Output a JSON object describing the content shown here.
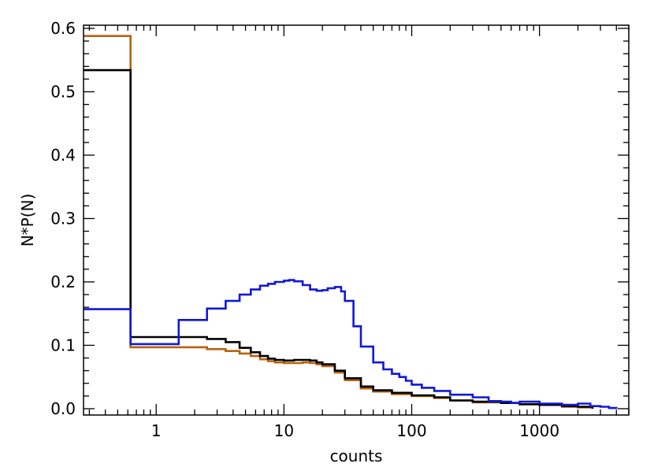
{
  "chart_data": {
    "type": "line",
    "title": "",
    "xlabel": "counts",
    "ylabel": "N*P(N)",
    "xscale": "log",
    "xlim": [
      0.27,
      5000
    ],
    "ylim": [
      -0.01,
      0.605
    ],
    "x_ticks": [
      {
        "value": 1,
        "label": "1"
      },
      {
        "value": 10,
        "label": "10"
      },
      {
        "value": 100,
        "label": "100"
      },
      {
        "value": 1000,
        "label": "1000"
      }
    ],
    "y_ticks": [
      {
        "value": 0.0,
        "label": "0.0"
      },
      {
        "value": 0.1,
        "label": "0.1"
      },
      {
        "value": 0.2,
        "label": "0.2"
      },
      {
        "value": 0.3,
        "label": "0.3"
      },
      {
        "value": 0.4,
        "label": "0.4"
      },
      {
        "value": 0.5,
        "label": "0.5"
      },
      {
        "value": 0.6,
        "label": "0.6"
      }
    ],
    "grid": false,
    "legend": "none",
    "series": [
      {
        "color": "#b8620e",
        "step": true,
        "x": [
          0.27,
          0.63,
          0.63,
          1.5,
          2.5,
          3.5,
          4.5,
          5.5,
          6.5,
          7.5,
          8.5,
          10,
          12,
          14,
          16,
          18,
          20,
          25,
          30,
          40,
          50,
          70,
          100,
          150,
          200,
          300,
          500,
          700,
          1000,
          1500,
          2000,
          2600
        ],
        "y": [
          0.588,
          0.588,
          0.097,
          0.097,
          0.094,
          0.091,
          0.087,
          0.083,
          0.078,
          0.075,
          0.073,
          0.072,
          0.072,
          0.073,
          0.072,
          0.07,
          0.067,
          0.057,
          0.045,
          0.032,
          0.027,
          0.023,
          0.02,
          0.017,
          0.013,
          0.01,
          0.009,
          0.007,
          0.006,
          0.003,
          0.002,
          0.0
        ]
      },
      {
        "color": "#000000",
        "step": true,
        "x": [
          0.27,
          0.63,
          0.63,
          1.5,
          2.5,
          3.5,
          4.5,
          5.5,
          6.5,
          7.5,
          8.5,
          10,
          12,
          14,
          16,
          18,
          20,
          25,
          30,
          40,
          50,
          70,
          100,
          150,
          200,
          300,
          500,
          700,
          1000,
          1500,
          2000,
          2600
        ],
        "y": [
          0.534,
          0.534,
          0.113,
          0.113,
          0.11,
          0.105,
          0.096,
          0.089,
          0.083,
          0.079,
          0.077,
          0.076,
          0.077,
          0.077,
          0.076,
          0.073,
          0.07,
          0.06,
          0.048,
          0.035,
          0.029,
          0.025,
          0.021,
          0.018,
          0.013,
          0.011,
          0.009,
          0.007,
          0.006,
          0.004,
          0.003,
          0.0
        ]
      },
      {
        "color": "#1018d8",
        "step": true,
        "x": [
          0.27,
          0.63,
          0.63,
          1.5,
          2.5,
          3.5,
          4.5,
          5.5,
          6.5,
          7.5,
          8.5,
          10,
          11,
          12,
          14,
          16,
          18,
          20,
          22,
          25,
          28,
          30,
          35,
          40,
          50,
          60,
          70,
          80,
          90,
          100,
          120,
          150,
          200,
          300,
          400,
          500,
          600,
          700,
          1000,
          1500,
          2000,
          2500,
          3000,
          3500,
          4000
        ],
        "y": [
          0.157,
          0.157,
          0.102,
          0.14,
          0.158,
          0.17,
          0.18,
          0.188,
          0.194,
          0.197,
          0.2,
          0.202,
          0.203,
          0.201,
          0.195,
          0.188,
          0.186,
          0.187,
          0.19,
          0.192,
          0.185,
          0.17,
          0.13,
          0.098,
          0.073,
          0.062,
          0.055,
          0.05,
          0.044,
          0.038,
          0.033,
          0.028,
          0.022,
          0.018,
          0.012,
          0.011,
          0.009,
          0.011,
          0.008,
          0.006,
          0.008,
          0.004,
          0.003,
          0.001,
          0.0
        ]
      }
    ]
  }
}
